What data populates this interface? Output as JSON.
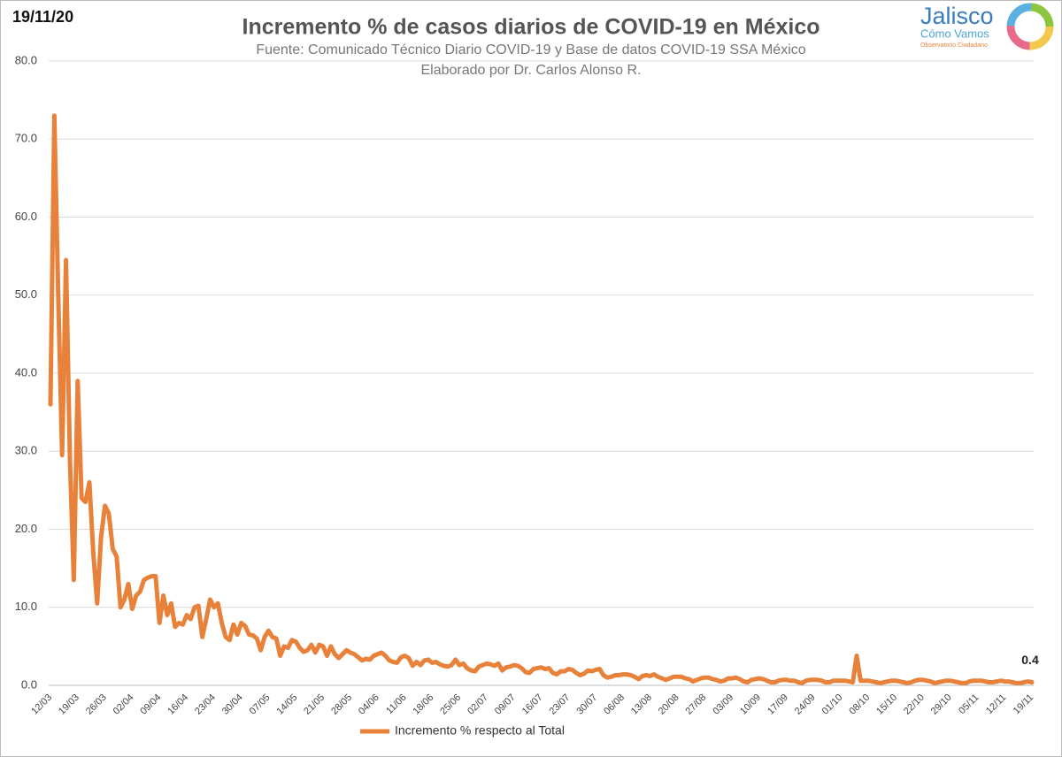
{
  "date_stamp": "19/11/20",
  "logo": {
    "name": "Jalisco",
    "line1": "Cómo Vamos",
    "line2": "Observatorio Ciudadano"
  },
  "chart_data": {
    "type": "line",
    "title": "Incremento % de casos diarios de COVID-19 en México",
    "subtitle": [
      "Fuente: Comunicado Técnico Diario COVID-19 y Base de datos COVID-19 SSA México",
      "Elaborado por Dr. Carlos Alonso R."
    ],
    "categories": [
      "12/03",
      null,
      null,
      null,
      null,
      null,
      null,
      "19/03",
      null,
      null,
      null,
      null,
      null,
      null,
      "26/03",
      null,
      null,
      null,
      null,
      null,
      null,
      "02/04",
      null,
      null,
      null,
      null,
      null,
      null,
      "09/04",
      null,
      null,
      null,
      null,
      null,
      null,
      "16/04",
      null,
      null,
      null,
      null,
      null,
      null,
      "23/04",
      null,
      null,
      null,
      null,
      null,
      null,
      "30/04",
      null,
      null,
      null,
      null,
      null,
      null,
      "07/05",
      null,
      null,
      null,
      null,
      null,
      null,
      "14/05",
      null,
      null,
      null,
      null,
      null,
      null,
      "21/05",
      null,
      null,
      null,
      null,
      null,
      null,
      "28/05",
      null,
      null,
      null,
      null,
      null,
      null,
      "04/06",
      null,
      null,
      null,
      null,
      null,
      null,
      "11/06",
      null,
      null,
      null,
      null,
      null,
      null,
      "18/06",
      null,
      null,
      null,
      null,
      null,
      null,
      "25/06",
      null,
      null,
      null,
      null,
      null,
      null,
      "02/07",
      null,
      null,
      null,
      null,
      null,
      null,
      "09/07",
      null,
      null,
      null,
      null,
      null,
      null,
      "16/07",
      null,
      null,
      null,
      null,
      null,
      null,
      "23/07",
      null,
      null,
      null,
      null,
      null,
      null,
      "30/07",
      null,
      null,
      null,
      null,
      null,
      null,
      "06/08",
      null,
      null,
      null,
      null,
      null,
      null,
      "13/08",
      null,
      null,
      null,
      null,
      null,
      null,
      "20/08",
      null,
      null,
      null,
      null,
      null,
      null,
      "27/08",
      null,
      null,
      null,
      null,
      null,
      null,
      "03/09",
      null,
      null,
      null,
      null,
      null,
      null,
      "10/09",
      null,
      null,
      null,
      null,
      null,
      null,
      "17/09",
      null,
      null,
      null,
      null,
      null,
      null,
      "24/09",
      null,
      null,
      null,
      null,
      null,
      null,
      "01/10",
      null,
      null,
      null,
      null,
      null,
      null,
      "08/10",
      null,
      null,
      null,
      null,
      null,
      null,
      "15/10",
      null,
      null,
      null,
      null,
      null,
      null,
      "22/10",
      null,
      null,
      null,
      null,
      null,
      null,
      "29/10",
      null,
      null,
      null,
      null,
      null,
      null,
      "05/11",
      null,
      null,
      null,
      null,
      null,
      null,
      "12/11",
      null,
      null,
      null,
      null,
      null,
      null,
      "19/11"
    ],
    "series": [
      {
        "name": "Incremento % respecto al Total",
        "color": "#e8823a",
        "values": [
          36,
          73,
          50,
          29.5,
          54.5,
          29,
          13.5,
          39,
          24,
          23.5,
          26,
          17,
          10.5,
          19,
          23,
          22,
          17.5,
          16.5,
          10,
          11,
          13,
          9.8,
          11.5,
          12,
          13.5,
          13.8,
          14,
          14,
          8,
          11.5,
          9,
          10.5,
          7.5,
          8,
          7.8,
          9,
          8.5,
          10,
          10.2,
          6.2,
          8.5,
          11,
          10,
          10.5,
          8,
          6.2,
          5.8,
          7.8,
          6.5,
          8,
          7.6,
          6.5,
          6.4,
          6,
          4.5,
          6.2,
          7,
          6.2,
          6,
          3.8,
          5,
          4.8,
          5.8,
          5.6,
          4.8,
          4.3,
          4.5,
          5.2,
          4.2,
          5.2,
          5,
          3.8,
          5,
          4,
          3.5,
          4,
          4.5,
          4.2,
          4,
          3.6,
          3.2,
          3.4,
          3.3,
          3.8,
          4,
          4.2,
          3.8,
          3.2,
          3,
          2.9,
          3.6,
          3.8,
          3.5,
          2.5,
          3,
          2.6,
          3.2,
          3.3,
          2.9,
          3,
          2.7,
          2.5,
          2.4,
          2.6,
          3.3,
          2.6,
          2.8,
          2.2,
          1.9,
          1.8,
          2.4,
          2.6,
          2.8,
          2.7,
          2.5,
          2.8,
          1.9,
          2.3,
          2.4,
          2.6,
          2.5,
          2.2,
          1.7,
          1.6,
          2.1,
          2.2,
          2.3,
          2.1,
          2.2,
          1.6,
          1.4,
          1.8,
          1.8,
          2.1,
          2,
          1.6,
          1.3,
          1.5,
          1.9,
          1.8,
          2,
          2.1,
          1.3,
          1,
          1.1,
          1.3,
          1.3,
          1.4,
          1.4,
          1.3,
          1.1,
          0.8,
          1.2,
          1.3,
          1.2,
          1.4,
          1.1,
          0.9,
          0.7,
          0.9,
          1.1,
          1.1,
          1.1,
          0.9,
          0.8,
          0.5,
          0.7,
          0.9,
          1,
          1,
          0.8,
          0.7,
          0.5,
          0.6,
          0.9,
          0.9,
          1,
          0.8,
          0.5,
          0.4,
          0.7,
          0.8,
          0.9,
          0.8,
          0.6,
          0.4,
          0.4,
          0.6,
          0.7,
          0.7,
          0.6,
          0.6,
          0.4,
          0.3,
          0.6,
          0.7,
          0.7,
          0.7,
          0.6,
          0.4,
          0.4,
          0.6,
          0.6,
          0.6,
          0.6,
          0.5,
          0.4,
          3.8,
          0.6,
          0.6,
          0.6,
          0.5,
          0.4,
          0.3,
          0.4,
          0.5,
          0.6,
          0.6,
          0.5,
          0.4,
          0.3,
          0.4,
          0.6,
          0.7,
          0.7,
          0.6,
          0.5,
          0.3,
          0.4,
          0.5,
          0.6,
          0.6,
          0.5,
          0.4,
          0.3,
          0.3,
          0.5,
          0.6,
          0.6,
          0.6,
          0.5,
          0.4,
          0.4,
          0.5,
          0.6,
          0.5,
          0.5,
          0.4,
          0.3,
          0.3,
          0.4,
          0.5,
          0.4
        ]
      }
    ],
    "ylim": [
      0,
      80
    ],
    "yticks": [
      {
        "value": 0,
        "label": "0.0"
      },
      {
        "value": 10,
        "label": "10.0"
      },
      {
        "value": 20,
        "label": "20.0"
      },
      {
        "value": 30,
        "label": "30.0"
      },
      {
        "value": 40,
        "label": "40.0"
      },
      {
        "value": 50,
        "label": "50.0"
      },
      {
        "value": 60,
        "label": "60.0"
      },
      {
        "value": 70,
        "label": "70.0"
      },
      {
        "value": 80,
        "label": "80.0"
      }
    ],
    "grid": true,
    "legend": "bottom"
  }
}
